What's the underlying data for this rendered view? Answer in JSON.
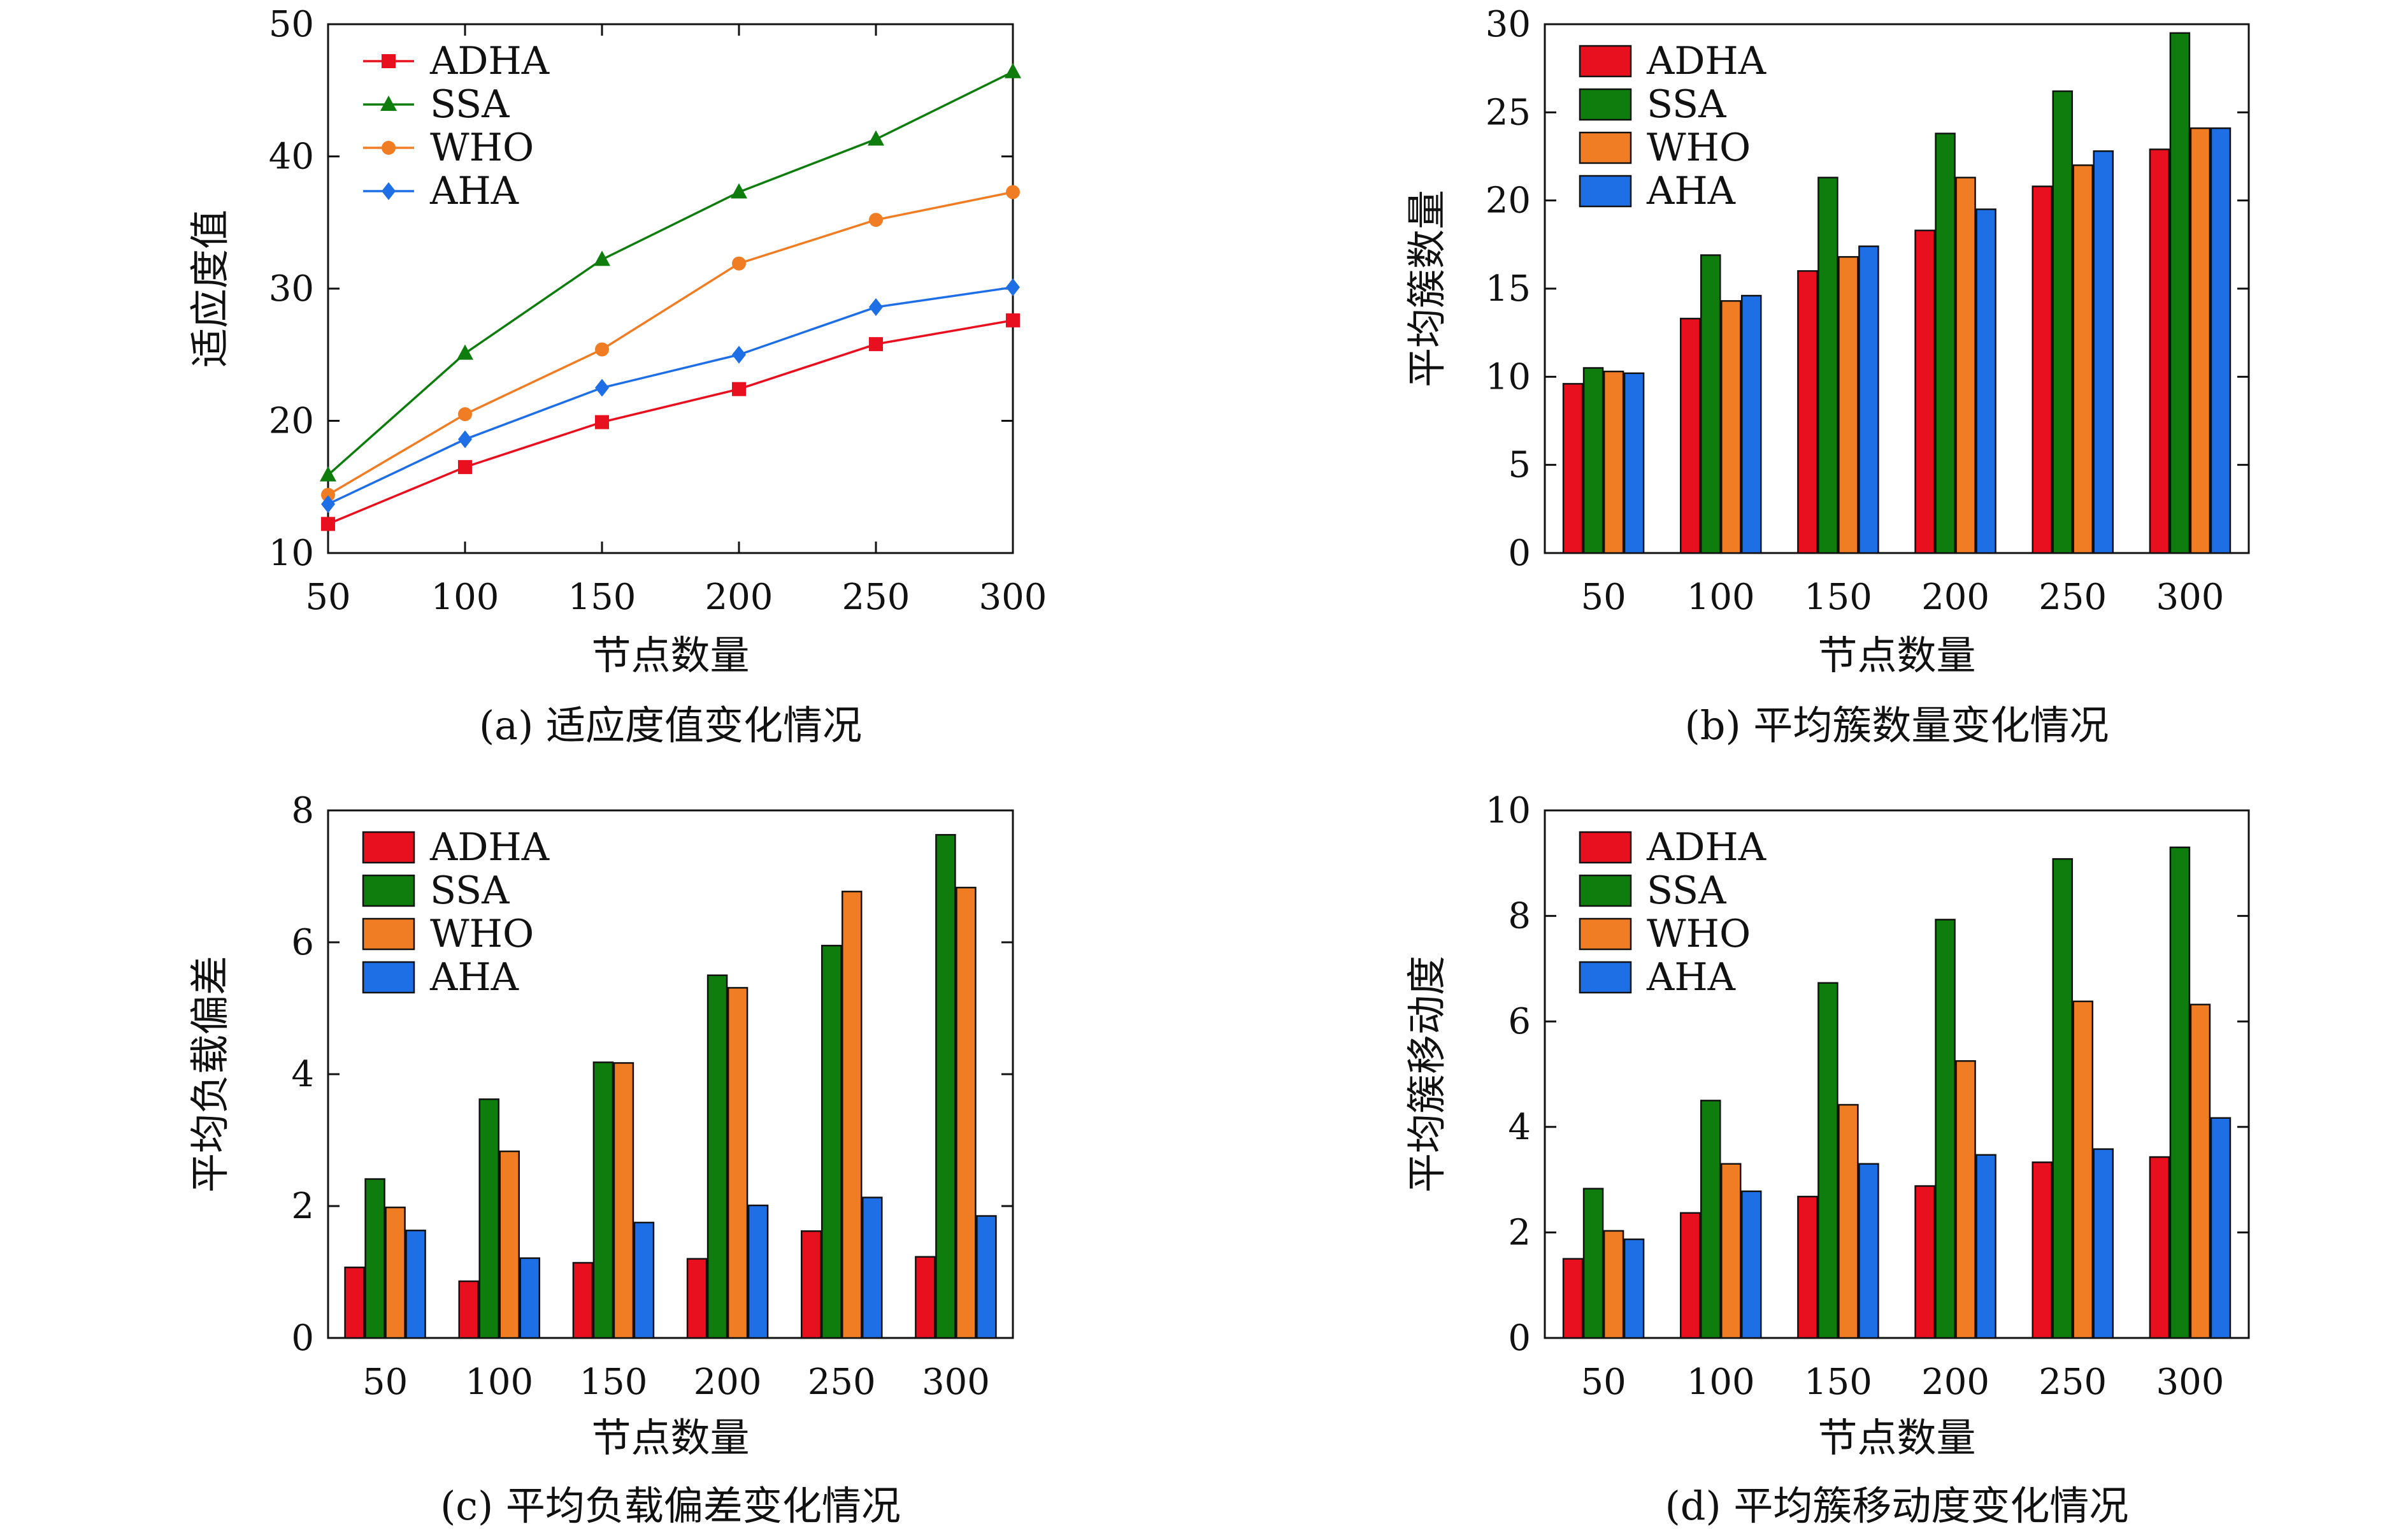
{
  "colors": {
    "ADHA": "#e8101e",
    "SSA": "#0e7d0e",
    "WHO": "#f07d23",
    "AHA": "#1e6ee6"
  },
  "chart_data": [
    {
      "type": "line",
      "caption": "(a) 适应度值变化情况",
      "xlabel": "节点数量",
      "ylabel": "适应度值",
      "categories": [
        "50",
        "100",
        "150",
        "200",
        "250",
        "300"
      ],
      "ylim": [
        10,
        50
      ],
      "yticks": [
        "10",
        "20",
        "30",
        "40",
        "50"
      ],
      "legend_position": "top-left",
      "series": [
        {
          "name": "ADHA",
          "marker": "square",
          "values": [
            12.2,
            16.5,
            19.9,
            22.4,
            25.8,
            27.6
          ]
        },
        {
          "name": "SSA",
          "marker": "triangle",
          "values": [
            15.9,
            25.1,
            32.2,
            37.3,
            41.3,
            46.4
          ]
        },
        {
          "name": "WHO",
          "marker": "circle",
          "values": [
            14.4,
            20.5,
            25.4,
            31.9,
            35.2,
            37.3
          ]
        },
        {
          "name": "AHA",
          "marker": "diamond",
          "values": [
            13.7,
            18.6,
            22.5,
            25.0,
            28.6,
            30.1
          ]
        }
      ]
    },
    {
      "type": "bar",
      "caption": "(b) 平均簇数量变化情况",
      "xlabel": "节点数量",
      "ylabel": "平均簇数量",
      "categories": [
        "50",
        "100",
        "150",
        "200",
        "250",
        "300"
      ],
      "ylim": [
        0,
        30
      ],
      "yticks": [
        "0",
        "5",
        "10",
        "15",
        "20",
        "25",
        "30"
      ],
      "legend_position": "top-left",
      "series": [
        {
          "name": "ADHA",
          "values": [
            9.6,
            13.3,
            16.0,
            18.3,
            20.8,
            22.9
          ]
        },
        {
          "name": "SSA",
          "values": [
            10.5,
            16.9,
            21.3,
            23.8,
            26.2,
            29.5
          ]
        },
        {
          "name": "WHO",
          "values": [
            10.3,
            14.3,
            16.8,
            21.3,
            22.0,
            24.1
          ]
        },
        {
          "name": "AHA",
          "values": [
            10.2,
            14.6,
            17.4,
            19.5,
            22.8,
            24.1
          ]
        }
      ]
    },
    {
      "type": "bar",
      "caption": "(c) 平均负载偏差变化情况",
      "xlabel": "节点数量",
      "ylabel": "平均负载偏差",
      "categories": [
        "50",
        "100",
        "150",
        "200",
        "250",
        "300"
      ],
      "ylim": [
        0,
        8
      ],
      "yticks": [
        "0",
        "2",
        "4",
        "6",
        "8"
      ],
      "legend_position": "top-left",
      "series": [
        {
          "name": "ADHA",
          "values": [
            1.07,
            0.86,
            1.14,
            1.2,
            1.62,
            1.23
          ]
        },
        {
          "name": "SSA",
          "values": [
            2.41,
            3.62,
            4.18,
            5.5,
            5.95,
            7.63
          ]
        },
        {
          "name": "WHO",
          "values": [
            1.98,
            2.83,
            4.17,
            5.31,
            6.77,
            6.83
          ]
        },
        {
          "name": "AHA",
          "values": [
            1.63,
            1.21,
            1.75,
            2.01,
            2.13,
            1.85
          ]
        }
      ]
    },
    {
      "type": "bar",
      "caption": "(d) 平均簇移动度变化情况",
      "xlabel": "节点数量",
      "ylabel": "平均簇移动度",
      "categories": [
        "50",
        "100",
        "150",
        "200",
        "250",
        "300"
      ],
      "ylim": [
        0,
        10
      ],
      "yticks": [
        "0",
        "2",
        "4",
        "6",
        "8",
        "10"
      ],
      "legend_position": "top-left",
      "series": [
        {
          "name": "ADHA",
          "values": [
            1.5,
            2.37,
            2.68,
            2.88,
            3.33,
            3.43
          ]
        },
        {
          "name": "SSA",
          "values": [
            2.83,
            4.5,
            6.73,
            7.93,
            9.08,
            9.3
          ]
        },
        {
          "name": "WHO",
          "values": [
            2.03,
            3.3,
            4.42,
            5.25,
            6.38,
            6.32
          ]
        },
        {
          "name": "AHA",
          "values": [
            1.87,
            2.78,
            3.3,
            3.47,
            3.58,
            4.17
          ]
        }
      ]
    }
  ]
}
